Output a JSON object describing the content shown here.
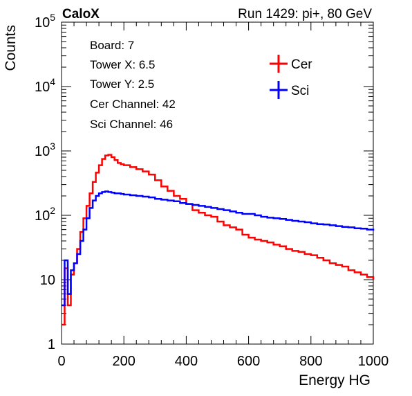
{
  "header": {
    "left_label": "CaloX",
    "right_label": "Run 1429: pi+, 80 GeV"
  },
  "info_box": {
    "lines": [
      "Board: 7",
      "Tower X: 6.5",
      "Tower Y: 2.5",
      "Cer Channel: 42",
      "Sci Channel: 46"
    ]
  },
  "colors": {
    "cer": "#ff0000",
    "sci": "#0000ff",
    "axis": "#000000"
  },
  "chart_data": {
    "type": "line",
    "title": "",
    "xlabel": "Energy HG",
    "ylabel": "Counts",
    "xlim": [
      0,
      1000
    ],
    "ylim": [
      1,
      100000
    ],
    "yscale": "log",
    "grid": false,
    "legend_position": "top-right",
    "x_tick_labels": [
      "0",
      "200",
      "400",
      "600",
      "800",
      "1000"
    ],
    "y_tick_labels": [
      {
        "base": "1",
        "exp": ""
      },
      {
        "base": "10",
        "exp": ""
      },
      {
        "base": "10",
        "exp": "2"
      },
      {
        "base": "10",
        "exp": "3"
      },
      {
        "base": "10",
        "exp": "4"
      },
      {
        "base": "10",
        "exp": "5"
      }
    ],
    "series": [
      {
        "name": "Cer",
        "color": "#ff0000",
        "x": [
          0,
          10,
          20,
          30,
          40,
          50,
          60,
          70,
          80,
          90,
          100,
          110,
          120,
          130,
          140,
          150,
          160,
          170,
          180,
          190,
          200,
          220,
          240,
          260,
          280,
          300,
          320,
          340,
          360,
          380,
          400,
          420,
          440,
          460,
          480,
          500,
          520,
          540,
          560,
          580,
          600,
          620,
          640,
          660,
          680,
          700,
          720,
          740,
          760,
          780,
          800,
          820,
          840,
          860,
          880,
          900,
          920,
          940,
          960,
          980,
          1000
        ],
        "y": [
          2,
          15,
          4,
          12,
          18,
          30,
          55,
          90,
          140,
          220,
          330,
          460,
          600,
          750,
          850,
          870,
          800,
          720,
          650,
          620,
          600,
          560,
          520,
          480,
          430,
          350,
          280,
          240,
          200,
          180,
          150,
          120,
          110,
          100,
          95,
          80,
          70,
          65,
          60,
          50,
          45,
          42,
          40,
          38,
          35,
          33,
          30,
          28,
          27,
          25,
          24,
          22,
          20,
          18,
          17,
          16,
          14,
          13,
          12,
          11,
          10
        ]
      },
      {
        "name": "Sci",
        "color": "#0000ff",
        "x": [
          0,
          10,
          20,
          30,
          40,
          50,
          60,
          70,
          80,
          90,
          100,
          110,
          120,
          130,
          140,
          150,
          160,
          170,
          180,
          190,
          200,
          220,
          240,
          260,
          280,
          300,
          320,
          340,
          360,
          380,
          400,
          420,
          440,
          460,
          480,
          500,
          520,
          540,
          560,
          580,
          600,
          620,
          640,
          660,
          680,
          700,
          720,
          740,
          760,
          780,
          800,
          820,
          840,
          860,
          880,
          900,
          920,
          940,
          960,
          980,
          1000
        ],
        "y": [
          4,
          20,
          6,
          14,
          18,
          25,
          40,
          60,
          90,
          130,
          170,
          200,
          220,
          230,
          235,
          230,
          225,
          220,
          220,
          215,
          210,
          205,
          200,
          195,
          190,
          180,
          175,
          170,
          165,
          155,
          150,
          145,
          140,
          135,
          130,
          125,
          120,
          115,
          110,
          105,
          105,
          100,
          95,
          92,
          90,
          88,
          85,
          82,
          80,
          78,
          75,
          73,
          72,
          70,
          68,
          66,
          65,
          63,
          62,
          60,
          58
        ]
      }
    ]
  }
}
